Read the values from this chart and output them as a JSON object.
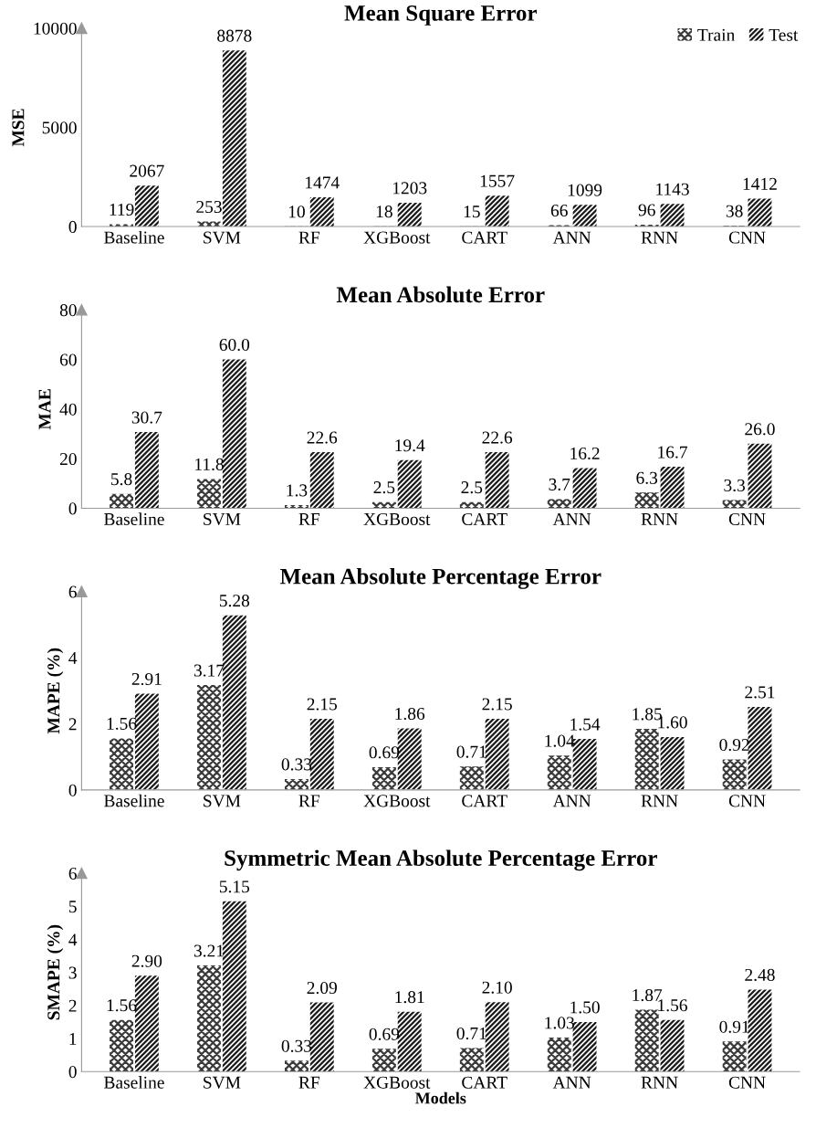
{
  "chart_data": [
    {
      "type": "bar",
      "title": "Mean Square Error",
      "ylabel": "MSE",
      "categories": [
        "Baseline",
        "SVM",
        "RF",
        "XGBoost",
        "CART",
        "ANN",
        "RNN",
        "CNN"
      ],
      "series": [
        {
          "name": "Train",
          "color": "#3a3a3a",
          "values": [
            119,
            253,
            10,
            18,
            15,
            66,
            96,
            38
          ],
          "value_labels": [
            "119",
            "253",
            "10",
            "18",
            "15",
            "66",
            "96",
            "38"
          ]
        },
        {
          "name": "Test",
          "color": "#1a1a1a",
          "values": [
            2067,
            8878,
            1474,
            1203,
            1557,
            1099,
            1143,
            1412
          ],
          "value_labels": [
            "2067",
            "8878",
            "1474",
            "1203",
            "1557",
            "1099",
            "1143",
            "1412"
          ]
        }
      ],
      "ylim": [
        0,
        10000
      ],
      "yticks": [
        0,
        5000,
        10000
      ],
      "legend": "top right",
      "grid": false
    },
    {
      "type": "bar",
      "title": "Mean Absolute Error",
      "ylabel": "MAE",
      "categories": [
        "Baseline",
        "SVM",
        "RF",
        "XGBoost",
        "CART",
        "ANN",
        "RNN",
        "CNN"
      ],
      "series": [
        {
          "color": "#3a3a3a",
          "values": [
            5.8,
            11.8,
            1.3,
            2.5,
            2.5,
            3.7,
            6.3,
            3.3
          ],
          "value_labels": [
            "5.8",
            "11.8",
            "1.3",
            "2.5",
            "2.5",
            "3.7",
            "6.3",
            "3.3"
          ]
        },
        {
          "color": "#1a1a1a",
          "values": [
            30.7,
            60.0,
            22.6,
            19.4,
            22.6,
            16.2,
            16.7,
            26.0
          ],
          "value_labels": [
            "30.7",
            "60.0",
            "22.6",
            "19.4",
            "22.6",
            "16.2",
            "16.7",
            "26.0"
          ]
        }
      ],
      "ylim": [
        0,
        80
      ],
      "yticks": [
        0,
        20,
        40,
        60,
        80
      ],
      "legend": false,
      "grid": false
    },
    {
      "type": "bar",
      "title": "Mean Absolute Percentage Error",
      "ylabel": "MAPE (%)",
      "categories": [
        "Baseline",
        "SVM",
        "RF",
        "XGBoost",
        "CART",
        "ANN",
        "RNN",
        "CNN"
      ],
      "series": [
        {
          "color": "#3a3a3a",
          "values": [
            1.56,
            3.17,
            0.33,
            0.69,
            0.71,
            1.04,
            1.85,
            0.92
          ],
          "value_labels": [
            "1.56",
            "3.17",
            "0.33",
            "0.69",
            "0.71",
            "1.04",
            "1.85",
            "0.92"
          ]
        },
        {
          "color": "#1a1a1a",
          "values": [
            2.91,
            5.28,
            2.15,
            1.86,
            2.15,
            1.54,
            1.6,
            2.51
          ],
          "value_labels": [
            "2.91",
            "5.28",
            "2.15",
            "1.86",
            "2.15",
            "1.54",
            "1.60",
            "2.51"
          ]
        }
      ],
      "ylim": [
        0,
        6
      ],
      "yticks": [
        0,
        2,
        4,
        6
      ],
      "legend": false,
      "grid": false
    },
    {
      "type": "bar",
      "title": "Symmetric Mean Absolute Percentage Error",
      "ylabel": "SMAPE (%)",
      "xlabel": "Models",
      "categories": [
        "Baseline",
        "SVM",
        "RF",
        "XGBoost",
        "CART",
        "ANN",
        "RNN",
        "CNN"
      ],
      "series": [
        {
          "color": "#3a3a3a",
          "values": [
            1.56,
            3.21,
            0.33,
            0.69,
            0.71,
            1.03,
            1.87,
            0.91
          ],
          "value_labels": [
            "1.56",
            "3.21",
            "0.33",
            "0.69",
            "0.71",
            "1.03",
            "1.87",
            "0.91"
          ]
        },
        {
          "color": "#1a1a1a",
          "values": [
            2.9,
            5.15,
            2.09,
            1.81,
            2.1,
            1.5,
            1.56,
            2.48
          ],
          "value_labels": [
            "2.90",
            "5.15",
            "2.09",
            "1.81",
            "2.10",
            "1.50",
            "1.56",
            "2.48"
          ]
        }
      ],
      "ylim": [
        0,
        6
      ],
      "yticks": [
        0,
        1,
        2,
        3,
        4,
        5,
        6
      ],
      "legend": false,
      "grid": false
    }
  ]
}
